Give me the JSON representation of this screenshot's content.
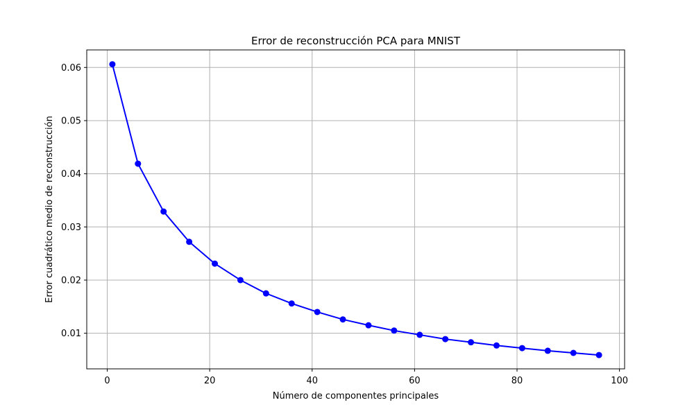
{
  "chart_data": {
    "type": "line",
    "title": "Error de reconstrucción PCA para MNIST",
    "xlabel": "Número de componentes principales",
    "ylabel": "Error cuadrático medio de reconstrucción",
    "xlim": [
      -4,
      101
    ],
    "ylim": [
      0.0033,
      0.0633
    ],
    "xticks": [
      0,
      20,
      40,
      60,
      80,
      100
    ],
    "yticks": [
      0.01,
      0.02,
      0.03,
      0.04,
      0.05,
      0.06
    ],
    "grid": true,
    "series": [
      {
        "color": "#0000ff",
        "marker": "circle",
        "x": [
          1,
          6,
          11,
          16,
          21,
          26,
          31,
          36,
          41,
          46,
          51,
          56,
          61,
          66,
          71,
          76,
          81,
          86,
          91,
          96
        ],
        "y": [
          0.0606,
          0.0419,
          0.0329,
          0.0272,
          0.0231,
          0.02,
          0.0175,
          0.0156,
          0.014,
          0.0126,
          0.0115,
          0.0105,
          0.0097,
          0.0089,
          0.0083,
          0.0077,
          0.0072,
          0.0067,
          0.0063,
          0.0059
        ]
      }
    ]
  }
}
